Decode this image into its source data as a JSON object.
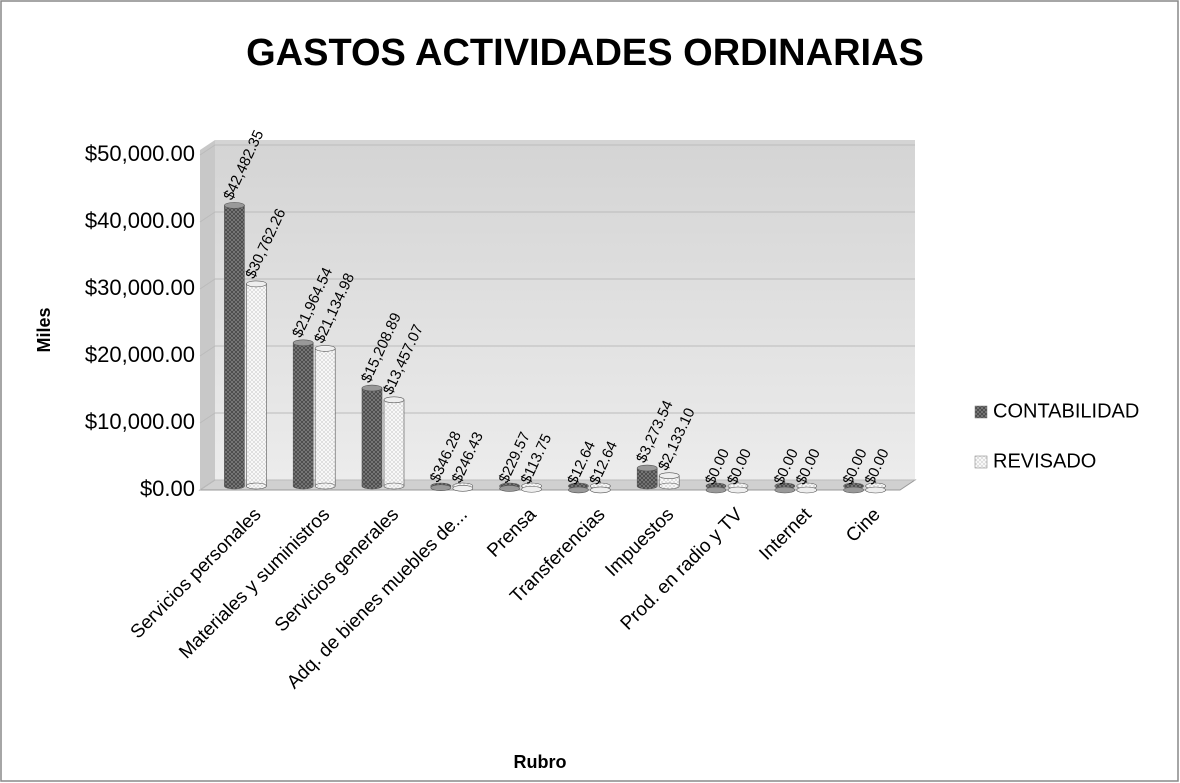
{
  "chart_data": {
    "type": "bar",
    "title": "GASTOS ACTIVIDADES ORDINARIAS",
    "ylabel": "Miles",
    "xlabel": "Rubro",
    "categories": [
      "Servicios personales",
      "Materiales y suministros",
      "Servicios generales",
      "Adq. de bienes muebles de...",
      "Prensa",
      "Transferencias",
      "Impuestos",
      "Prod. en radio y TV",
      "Internet",
      "Cine"
    ],
    "series": [
      {
        "name": "CONTABILIDAD",
        "color": "#7f7f7f",
        "values": [
          42482.35,
          21964.54,
          15208.89,
          346.28,
          229.57,
          12.64,
          3273.54,
          0,
          0,
          0
        ],
        "value_labels": [
          "$42,482.35",
          "$21,964.54",
          "$15,208.89",
          "$346.28",
          "$229.57",
          "$12.64",
          "$3,273.54",
          "$0.00",
          "$0.00",
          "$0.00"
        ]
      },
      {
        "name": "REVISADO",
        "color": "#d9d9d9",
        "values": [
          30762.26,
          21134.98,
          13457.07,
          246.43,
          113.75,
          12.64,
          2133.1,
          0,
          0,
          0
        ],
        "value_labels": [
          "$30,762.26",
          "$21,134.98",
          "$13,457.07",
          "$246.43",
          "$113.75",
          "$12.64",
          "$2,133.10",
          "$0.00",
          "$0.00",
          "$0.00"
        ]
      }
    ],
    "ylim": [
      0,
      50000
    ],
    "yticks": [
      {
        "value": 0,
        "label": "$0.00"
      },
      {
        "value": 10000,
        "label": "$10,000.00"
      },
      {
        "value": 20000,
        "label": "$20,000.00"
      },
      {
        "value": 30000,
        "label": "$30,000.00"
      },
      {
        "value": 40000,
        "label": "$40,000.00"
      },
      {
        "value": 50000,
        "label": "$50,000.00"
      }
    ],
    "grid": true,
    "legend": "right"
  }
}
